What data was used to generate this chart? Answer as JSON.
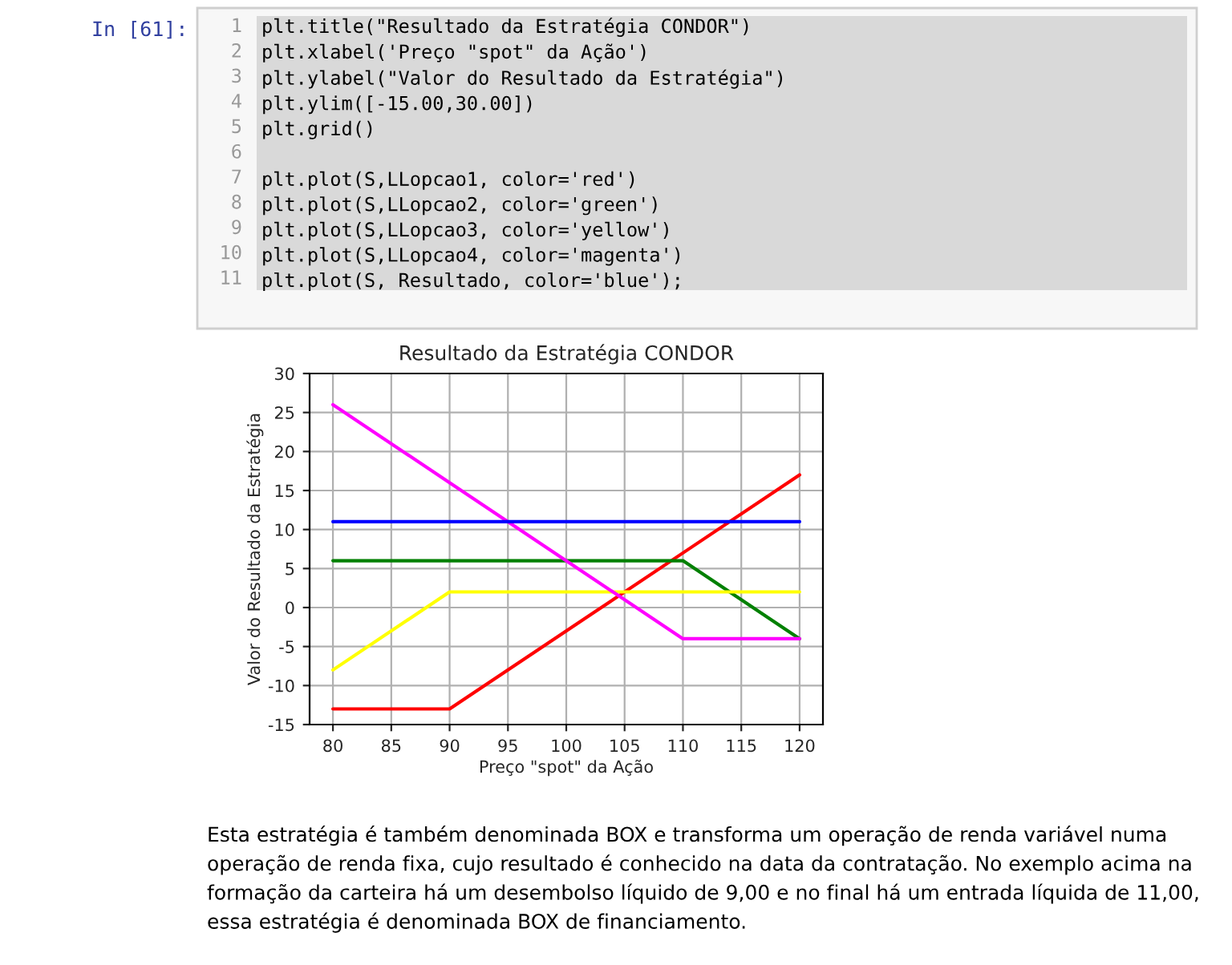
{
  "chart_data": {
    "type": "line",
    "title": "Resultado da Estratégia CONDOR",
    "xlabel": "Preço \"spot\" da Ação",
    "ylabel": "Valor do Resultado da Estratégia",
    "x": [
      80,
      90,
      110,
      120
    ],
    "series": [
      {
        "color": "#ff0000",
        "values": [
          -13,
          -13,
          7,
          17
        ]
      },
      {
        "color": "#008000",
        "values": [
          6,
          6,
          6,
          -4
        ]
      },
      {
        "color": "#ffff00",
        "values": [
          -8,
          2,
          2,
          2
        ]
      },
      {
        "color": "#ff00ff",
        "values": [
          26,
          16,
          -4,
          -4
        ]
      },
      {
        "color": "#0000ff",
        "values": [
          11,
          11,
          11,
          11
        ]
      }
    ],
    "xlim": [
      78,
      122
    ],
    "xticks": [
      80,
      85,
      90,
      95,
      100,
      105,
      110,
      115,
      120
    ],
    "ylim": [
      -15,
      30
    ],
    "yticks": [
      -15,
      -10,
      -5,
      0,
      5,
      10,
      15,
      20,
      25,
      30
    ],
    "grid": true,
    "marker": "none",
    "line_style": "solid",
    "annotations": [
      "In [61]:",
      "1\n2\n3\n4\n5\n6\n7\n8\n9\n10\n11",
      "plt.title(\"Resultado da Estratégia CONDOR\")\nplt.xlabel('Preço \"spot\" da Ação')\nplt.ylabel(\"Valor do Resultado da Estratégia\")\nplt.ylim([-15.00,30.00])\nplt.grid()\n\nplt.plot(S,LLopcao1, color='red')\nplt.plot(S,LLopcao2, color='green')\nplt.plot(S,LLopcao3, color='yellow')\nplt.plot(S,LLopcao4, color='magenta')\nplt.plot(S, Resultado, color='blue');",
      "Esta estratégia é também denominada BOX e transforma um operação de renda variável numa\noperação de renda fixa, cujo resultado é conhecido na data da contratação. No exemplo acima na\nformação da carteira há um desembolso líquido de 9,00 e no final há um entrada líquida de 11,00,\nessa estratégia é denominada BOX de financiamento."
    ]
  }
}
